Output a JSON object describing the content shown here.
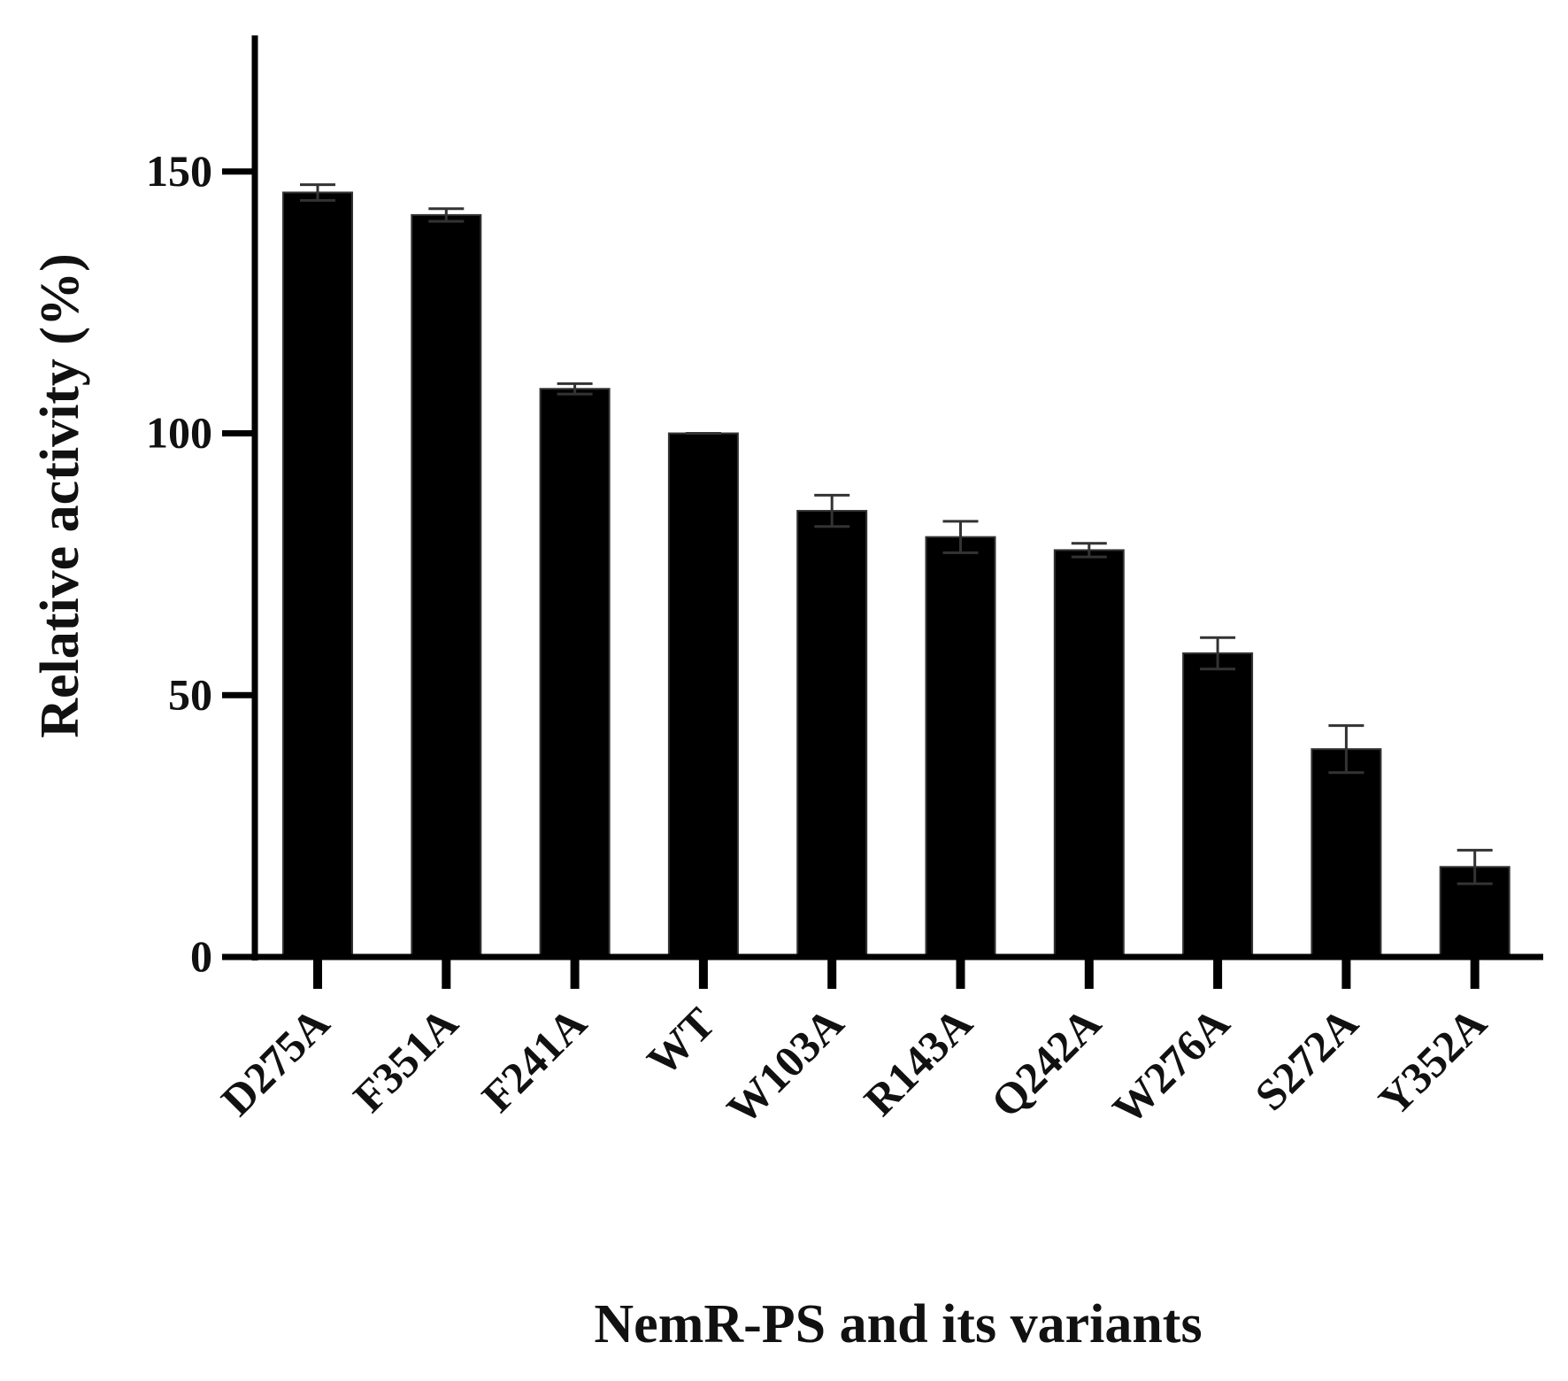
{
  "chart_data": {
    "type": "bar",
    "x_label": "NemR-PS and its variants",
    "y_label": "Relative activity (%)",
    "categories": [
      "D275A",
      "F351A",
      "F241A",
      "WT",
      "W103A",
      "R143A",
      "Q242A",
      "W276A",
      "S272A",
      "Y352A"
    ],
    "values": [
      146,
      141.7,
      108.5,
      100,
      85.2,
      80.2,
      77.7,
      58,
      39.7,
      17.2
    ],
    "errors": [
      1.5,
      1.2,
      1,
      0,
      3,
      3,
      1.3,
      3,
      4.5,
      3.2
    ],
    "color": "#000000",
    "ylim": [
      0,
      176
    ],
    "yticks": [
      0,
      50,
      100,
      150
    ],
    "grid": false
  }
}
